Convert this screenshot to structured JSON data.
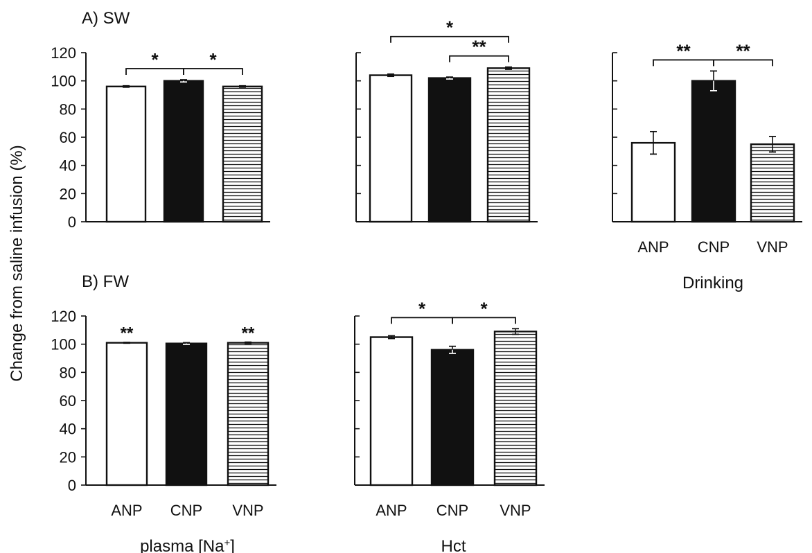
{
  "figure": {
    "ylabel": "Change from saline infusion (%)",
    "row_labels": [
      "A) SW",
      "B) FW"
    ]
  },
  "chart_data": [
    {
      "type": "bar",
      "id": "sw-plasma-na",
      "row": "A) SW",
      "categories": [
        "ANP",
        "CNP",
        "VNP"
      ],
      "values": [
        96,
        100,
        96
      ],
      "errors": [
        0.5,
        0.8,
        0.5
      ],
      "ylim": [
        0,
        120
      ],
      "yticks": [
        0,
        20,
        40,
        60,
        80,
        100,
        120
      ],
      "ytick_labels_shown": true,
      "xtick_labels_shown": false,
      "xlabel": "",
      "fills": [
        "white",
        "black",
        "hatched"
      ],
      "significance": [
        {
          "from": 0,
          "to": 1,
          "label": "*",
          "level": 1
        },
        {
          "from": 1,
          "to": 2,
          "label": "*",
          "level": 1
        }
      ],
      "bar_labels": []
    },
    {
      "type": "bar",
      "id": "sw-hct",
      "row": "A) SW",
      "categories": [
        "ANP",
        "CNP",
        "VNP"
      ],
      "values": [
        104,
        102,
        109
      ],
      "errors": [
        0.8,
        0.7,
        0.8
      ],
      "ylim": [
        0,
        120
      ],
      "yticks": [
        0,
        20,
        40,
        60,
        80,
        100,
        120
      ],
      "ytick_labels_shown": false,
      "xtick_labels_shown": false,
      "xlabel": "",
      "fills": [
        "white",
        "black",
        "hatched"
      ],
      "significance": [
        {
          "from": 0,
          "to": 2,
          "label": "*",
          "level": 2
        },
        {
          "from": 1,
          "to": 2,
          "label": "**",
          "level": 1
        }
      ],
      "bar_labels": []
    },
    {
      "type": "bar",
      "id": "sw-drinking",
      "row": "A) SW",
      "categories": [
        "ANP",
        "CNP",
        "VNP"
      ],
      "values": [
        56,
        100,
        55
      ],
      "errors": [
        8,
        7,
        5.5
      ],
      "ylim": [
        0,
        120
      ],
      "yticks": [
        0,
        20,
        40,
        60,
        80,
        100,
        120
      ],
      "ytick_labels_shown": false,
      "xtick_labels_shown": true,
      "xlabel": "Drinking",
      "fills": [
        "white",
        "black",
        "hatched"
      ],
      "significance": [
        {
          "from": 0,
          "to": 1,
          "label": "**",
          "level": 1
        },
        {
          "from": 1,
          "to": 2,
          "label": "**",
          "level": 1
        }
      ],
      "bar_labels": []
    },
    {
      "type": "bar",
      "id": "fw-plasma-na",
      "row": "B) FW",
      "categories": [
        "ANP",
        "CNP",
        "VNP"
      ],
      "values": [
        101,
        100.5,
        101
      ],
      "errors": [
        0.3,
        0.6,
        0.5
      ],
      "ylim": [
        0,
        120
      ],
      "yticks": [
        0,
        20,
        40,
        60,
        80,
        100,
        120
      ],
      "ytick_labels_shown": true,
      "xtick_labels_shown": true,
      "xlabel": "plasma [Na",
      "xlabel_sup": "+",
      "xlabel_suffix": "]",
      "fills": [
        "white",
        "black",
        "hatched"
      ],
      "significance": [],
      "bar_labels": [
        "**",
        "",
        "**"
      ]
    },
    {
      "type": "bar",
      "id": "fw-hct",
      "row": "B) FW",
      "categories": [
        "ANP",
        "CNP",
        "VNP"
      ],
      "values": [
        105,
        96,
        109
      ],
      "errors": [
        1,
        2.5,
        2
      ],
      "ylim": [
        0,
        120
      ],
      "yticks": [
        0,
        20,
        40,
        60,
        80,
        100,
        120
      ],
      "ytick_labels_shown": false,
      "xtick_labels_shown": true,
      "xlabel": "Hct",
      "fills": [
        "white",
        "black",
        "hatched"
      ],
      "significance": [
        {
          "from": 0,
          "to": 1,
          "label": "*",
          "level": 1
        },
        {
          "from": 1,
          "to": 2,
          "label": "*",
          "level": 1
        }
      ],
      "bar_labels": []
    }
  ]
}
